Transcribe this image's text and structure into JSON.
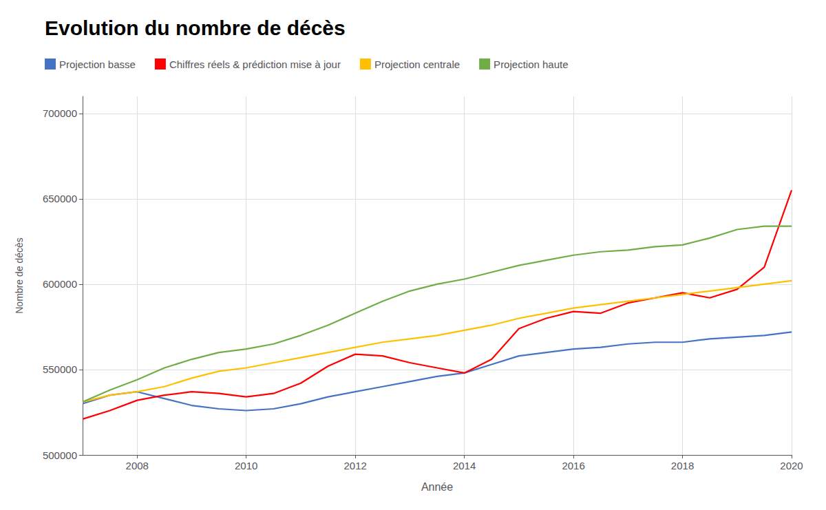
{
  "chart_data": {
    "type": "line",
    "title": "Evolution du nombre de décès",
    "x_label": "Année",
    "y_label": "Nombre de décès",
    "x": [
      2007,
      2007.5,
      2008,
      2008.5,
      2009,
      2009.5,
      2010,
      2010.5,
      2011,
      2011.5,
      2012,
      2012.5,
      2013,
      2013.5,
      2014,
      2014.5,
      2015,
      2015.5,
      2016,
      2016.5,
      2017,
      2017.5,
      2018,
      2018.5,
      2019,
      2019.5,
      2020
    ],
    "series": [
      {
        "name": "Projection basse",
        "color": "#4472C4",
        "values": [
          530000,
          535000,
          537000,
          533000,
          529000,
          527000,
          526000,
          527000,
          530000,
          534000,
          537000,
          540000,
          543000,
          546000,
          548000,
          553000,
          558000,
          560000,
          562000,
          563000,
          565000,
          566000,
          566000,
          568000,
          569000,
          570000,
          572000
        ]
      },
      {
        "name": "Chiffres réels & prédiction mise à jour",
        "color": "#FF0000",
        "values": [
          521000,
          526000,
          532000,
          535000,
          537000,
          536000,
          534000,
          536000,
          542000,
          552000,
          559000,
          558000,
          554000,
          551000,
          548000,
          556000,
          574000,
          580000,
          584000,
          583000,
          589000,
          592000,
          595000,
          592000,
          597000,
          610000,
          655000
        ]
      },
      {
        "name": "Projection centrale",
        "color": "#FFC000",
        "values": [
          531000,
          535000,
          537000,
          540000,
          545000,
          549000,
          551000,
          554000,
          557000,
          560000,
          563000,
          566000,
          568000,
          570000,
          573000,
          576000,
          580000,
          583000,
          586000,
          588000,
          590000,
          592000,
          594000,
          596000,
          598000,
          600000,
          602000
        ]
      },
      {
        "name": "Projection haute",
        "color": "#70AD47",
        "values": [
          531000,
          538000,
          544000,
          551000,
          556000,
          560000,
          562000,
          565000,
          570000,
          576000,
          583000,
          590000,
          596000,
          600000,
          603000,
          607000,
          611000,
          614000,
          617000,
          619000,
          620000,
          622000,
          623000,
          627000,
          632000,
          634000,
          634000
        ]
      }
    ],
    "xlim": [
      2007,
      2020
    ],
    "xticks": [
      2008,
      2010,
      2012,
      2014,
      2016,
      2018,
      2020
    ],
    "ylim": [
      500000,
      710000
    ],
    "yticks": [
      500000,
      550000,
      600000,
      650000,
      700000
    ],
    "grid": true,
    "legend": "upper left"
  }
}
